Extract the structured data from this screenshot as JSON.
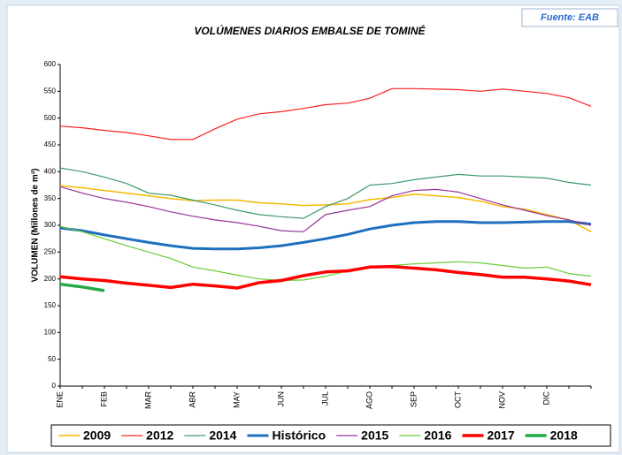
{
  "chart_data": {
    "type": "line",
    "title": "VOLÚMENES DIARIOS EMBALSE DE TOMINÉ",
    "source": "Fuente: EAB",
    "y_label": "VOLUMEN (Millones de m³)",
    "categories": [
      "ENE",
      null,
      "FEB",
      null,
      "MAR",
      null,
      "ABR",
      null,
      "MAY",
      null,
      "JUN",
      null,
      "JUL",
      null,
      "AGO",
      null,
      "SEP",
      null,
      "OCT",
      null,
      "NOV",
      null,
      "DIC",
      null,
      null
    ],
    "ylim": [
      0,
      600
    ],
    "yticks": [
      0,
      50,
      100,
      150,
      200,
      250,
      300,
      350,
      400,
      450,
      500,
      550,
      600
    ],
    "grid": false,
    "legend": "bottom",
    "series": [
      {
        "name": "2009",
        "color": "#f5b800",
        "width": 1.5,
        "values": [
          374,
          370,
          365,
          360,
          355,
          350,
          346,
          347,
          347,
          342,
          340,
          337,
          338,
          340,
          348,
          352,
          358,
          355,
          352,
          345,
          335,
          330,
          320,
          310,
          288
        ]
      },
      {
        "name": "2012",
        "color": "#ff2020",
        "width": 1.2,
        "values": [
          485,
          482,
          477,
          473,
          467,
          460,
          460,
          480,
          498,
          508,
          512,
          518,
          525,
          528,
          537,
          555,
          555,
          554,
          553,
          550,
          554,
          550,
          546,
          538,
          522
        ]
      },
      {
        "name": "2014",
        "color": "#3d9a6a",
        "width": 1.2,
        "values": [
          407,
          400,
          390,
          378,
          360,
          356,
          347,
          338,
          328,
          320,
          316,
          313,
          335,
          350,
          375,
          378,
          385,
          390,
          395,
          392,
          392,
          390,
          388,
          380,
          375
        ]
      },
      {
        "name": "Histórico",
        "color": "#1f6fbf",
        "width": 3,
        "values": [
          295,
          290,
          282,
          275,
          268,
          262,
          257,
          256,
          256,
          258,
          262,
          268,
          275,
          283,
          293,
          300,
          305,
          307,
          307,
          305,
          305,
          306,
          307,
          307,
          302
        ]
      },
      {
        "name": "2015",
        "color": "#993399",
        "width": 1.2,
        "values": [
          372,
          360,
          350,
          343,
          335,
          325,
          317,
          310,
          305,
          298,
          290,
          288,
          320,
          328,
          335,
          355,
          365,
          367,
          362,
          350,
          338,
          328,
          318,
          310,
          300
        ]
      },
      {
        "name": "2016",
        "color": "#66cc33",
        "width": 1.2,
        "values": [
          298,
          288,
          275,
          262,
          250,
          238,
          222,
          215,
          207,
          200,
          197,
          198,
          205,
          215,
          222,
          225,
          228,
          230,
          232,
          230,
          225,
          220,
          222,
          210,
          205
        ]
      },
      {
        "name": "2017",
        "color": "#ff0000",
        "width": 3.5,
        "values": [
          204,
          200,
          197,
          192,
          188,
          184,
          190,
          187,
          183,
          193,
          197,
          206,
          213,
          215,
          222,
          223,
          220,
          217,
          212,
          208,
          203,
          203,
          200,
          196,
          189
        ]
      },
      {
        "name": "2018",
        "color": "#22aa44",
        "width": 3.5,
        "values": [
          190,
          185,
          178,
          null,
          null,
          null,
          null,
          null,
          null,
          null,
          null,
          null,
          null,
          null,
          null,
          null,
          null,
          null,
          null,
          null,
          null,
          null,
          null,
          null,
          null
        ]
      }
    ]
  }
}
